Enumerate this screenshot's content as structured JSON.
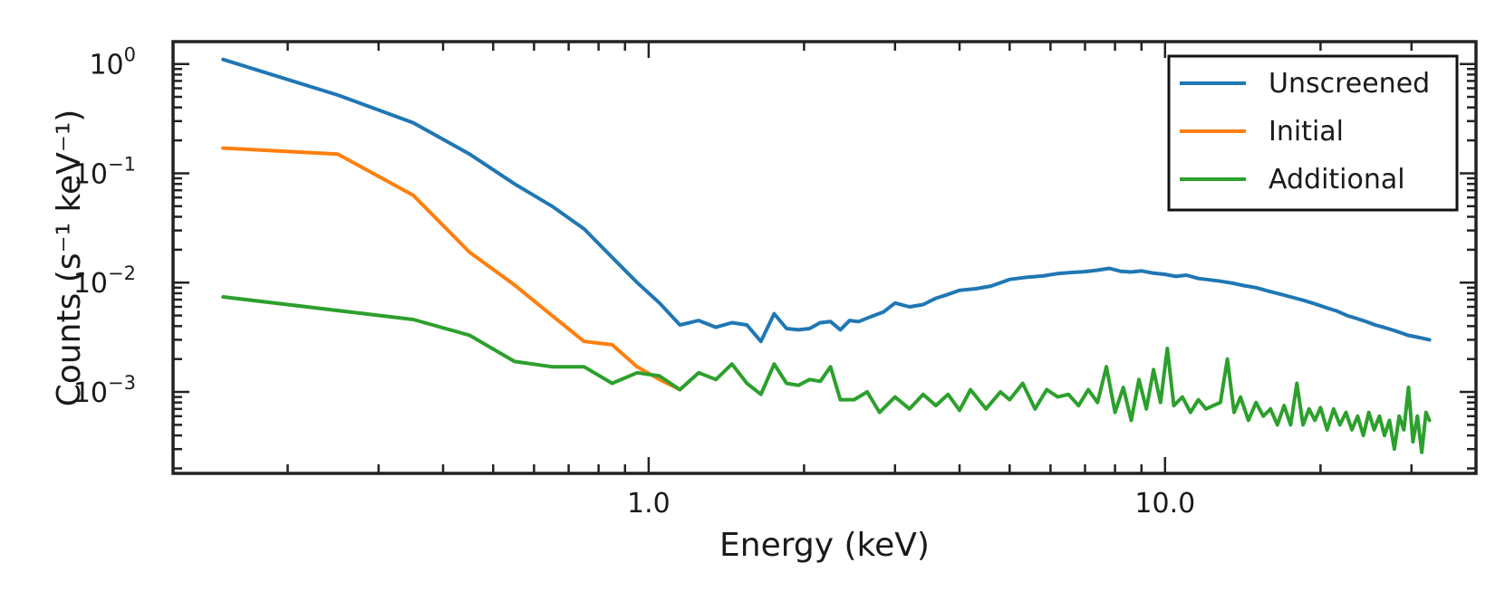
{
  "chart_data": {
    "type": "line",
    "xscale": "log",
    "yscale": "log",
    "xlabel": "Energy (keV)",
    "ylabel": "Counts (s⁻¹ keV⁻¹)",
    "xlim": [
      0.12,
      40
    ],
    "ylim": [
      0.00018,
      1.6
    ],
    "xticks": [
      {
        "value": 1.0,
        "label": "1.0"
      },
      {
        "value": 10.0,
        "label": "10.0"
      }
    ],
    "yticks": [
      {
        "value": 1,
        "base": "10",
        "exp": "0"
      },
      {
        "value": 0.1,
        "base": "10",
        "exp": "−1"
      },
      {
        "value": 0.01,
        "base": "10",
        "exp": "−2"
      },
      {
        "value": 0.001,
        "base": "10",
        "exp": "−3"
      }
    ],
    "legend_position": "top-right",
    "series": [
      {
        "name": "Unscreened",
        "color": "#1f77b4",
        "points": [
          [
            0.15,
            1.1
          ],
          [
            0.25,
            0.52
          ],
          [
            0.35,
            0.29
          ],
          [
            0.45,
            0.15
          ],
          [
            0.55,
            0.08
          ],
          [
            0.65,
            0.05
          ],
          [
            0.75,
            0.031
          ],
          [
            0.85,
            0.017
          ],
          [
            0.95,
            0.01
          ],
          [
            1.05,
            0.0065
          ],
          [
            1.15,
            0.0041
          ],
          [
            1.25,
            0.0045
          ],
          [
            1.35,
            0.0039
          ],
          [
            1.45,
            0.0043
          ],
          [
            1.55,
            0.0041
          ],
          [
            1.65,
            0.0029
          ],
          [
            1.75,
            0.0052
          ],
          [
            1.85,
            0.0038
          ],
          [
            1.95,
            0.0037
          ],
          [
            2.05,
            0.0038
          ],
          [
            2.15,
            0.0043
          ],
          [
            2.25,
            0.0044
          ],
          [
            2.35,
            0.0037
          ],
          [
            2.45,
            0.0045
          ],
          [
            2.55,
            0.0044
          ],
          [
            2.7,
            0.0049
          ],
          [
            2.85,
            0.0054
          ],
          [
            3.0,
            0.0065
          ],
          [
            3.2,
            0.006
          ],
          [
            3.4,
            0.0063
          ],
          [
            3.6,
            0.0072
          ],
          [
            3.8,
            0.0078
          ],
          [
            4.0,
            0.0085
          ],
          [
            4.3,
            0.0088
          ],
          [
            4.6,
            0.0093
          ],
          [
            5.0,
            0.0107
          ],
          [
            5.4,
            0.0112
          ],
          [
            5.8,
            0.0115
          ],
          [
            6.2,
            0.0121
          ],
          [
            6.6,
            0.0124
          ],
          [
            7.0,
            0.0126
          ],
          [
            7.4,
            0.013
          ],
          [
            7.8,
            0.0135
          ],
          [
            8.2,
            0.0127
          ],
          [
            8.6,
            0.0125
          ],
          [
            9.0,
            0.0128
          ],
          [
            9.5,
            0.0122
          ],
          [
            10.0,
            0.0119
          ],
          [
            10.5,
            0.0114
          ],
          [
            11.0,
            0.0117
          ],
          [
            11.6,
            0.0109
          ],
          [
            12.2,
            0.0106
          ],
          [
            12.8,
            0.0103
          ],
          [
            13.5,
            0.0099
          ],
          [
            14.2,
            0.0094
          ],
          [
            15.0,
            0.009
          ],
          [
            15.8,
            0.0084
          ],
          [
            16.6,
            0.0079
          ],
          [
            17.5,
            0.0074
          ],
          [
            18.5,
            0.0069
          ],
          [
            19.5,
            0.0064
          ],
          [
            20.5,
            0.0059
          ],
          [
            21.5,
            0.0055
          ],
          [
            22.5,
            0.005
          ],
          [
            23.5,
            0.0047
          ],
          [
            24.5,
            0.0044
          ],
          [
            25.5,
            0.0041
          ],
          [
            26.5,
            0.0039
          ],
          [
            27.5,
            0.0037
          ],
          [
            28.5,
            0.0035
          ],
          [
            29.5,
            0.0033
          ],
          [
            30.5,
            0.0032
          ],
          [
            31.5,
            0.0031
          ],
          [
            32.5,
            0.003
          ]
        ]
      },
      {
        "name": "Initial",
        "color": "#ff7f0e",
        "points": [
          [
            0.15,
            0.17
          ],
          [
            0.25,
            0.15
          ],
          [
            0.35,
            0.063
          ],
          [
            0.45,
            0.019
          ],
          [
            0.55,
            0.0095
          ],
          [
            0.65,
            0.005
          ],
          [
            0.75,
            0.0029
          ],
          [
            0.85,
            0.0027
          ],
          [
            0.95,
            0.0017
          ],
          [
            1.05,
            0.0013
          ],
          [
            1.15,
            0.00105
          ]
        ]
      },
      {
        "name": "Additional",
        "color": "#2ca02c",
        "points": [
          [
            0.15,
            0.0074
          ],
          [
            0.35,
            0.0046
          ],
          [
            0.45,
            0.0033
          ],
          [
            0.55,
            0.0019
          ],
          [
            0.65,
            0.0017
          ],
          [
            0.75,
            0.0017
          ],
          [
            0.85,
            0.0012
          ],
          [
            0.95,
            0.0015
          ],
          [
            1.05,
            0.0014
          ],
          [
            1.15,
            0.00105
          ],
          [
            1.25,
            0.0015
          ],
          [
            1.35,
            0.0013
          ],
          [
            1.45,
            0.0018
          ],
          [
            1.55,
            0.0012
          ],
          [
            1.65,
            0.00095
          ],
          [
            1.75,
            0.0018
          ],
          [
            1.85,
            0.0012
          ],
          [
            1.95,
            0.00115
          ],
          [
            2.05,
            0.0013
          ],
          [
            2.15,
            0.00125
          ],
          [
            2.25,
            0.0017
          ],
          [
            2.35,
            0.00085
          ],
          [
            2.5,
            0.00085
          ],
          [
            2.65,
            0.001
          ],
          [
            2.8,
            0.00065
          ],
          [
            3.0,
            0.0009
          ],
          [
            3.2,
            0.0007
          ],
          [
            3.4,
            0.00095
          ],
          [
            3.6,
            0.00075
          ],
          [
            3.8,
            0.00095
          ],
          [
            4.0,
            0.00068
          ],
          [
            4.2,
            0.00105
          ],
          [
            4.5,
            0.0007
          ],
          [
            4.8,
            0.001
          ],
          [
            5.0,
            0.00085
          ],
          [
            5.3,
            0.0012
          ],
          [
            5.6,
            0.0007
          ],
          [
            5.9,
            0.00105
          ],
          [
            6.2,
            0.0009
          ],
          [
            6.5,
            0.00095
          ],
          [
            6.8,
            0.00075
          ],
          [
            7.1,
            0.00105
          ],
          [
            7.4,
            0.0008
          ],
          [
            7.7,
            0.0017
          ],
          [
            8.0,
            0.00065
          ],
          [
            8.3,
            0.0011
          ],
          [
            8.6,
            0.00055
          ],
          [
            8.9,
            0.0013
          ],
          [
            9.2,
            0.0007
          ],
          [
            9.5,
            0.0016
          ],
          [
            9.8,
            0.0008
          ],
          [
            10.1,
            0.0025
          ],
          [
            10.4,
            0.00075
          ],
          [
            10.8,
            0.0009
          ],
          [
            11.2,
            0.00065
          ],
          [
            11.6,
            0.00085
          ],
          [
            12.0,
            0.0007
          ],
          [
            12.4,
            0.00075
          ],
          [
            12.8,
            0.0008
          ],
          [
            13.2,
            0.002
          ],
          [
            13.6,
            0.00065
          ],
          [
            14.0,
            0.0009
          ],
          [
            14.5,
            0.00055
          ],
          [
            15.0,
            0.0008
          ],
          [
            15.5,
            0.0006
          ],
          [
            16.0,
            0.0007
          ],
          [
            16.5,
            0.0005
          ],
          [
            17.0,
            0.00075
          ],
          [
            17.5,
            0.0005
          ],
          [
            18.0,
            0.0012
          ],
          [
            18.5,
            0.0005
          ],
          [
            19.0,
            0.0007
          ],
          [
            19.5,
            0.00055
          ],
          [
            20.0,
            0.00072
          ],
          [
            20.6,
            0.00045
          ],
          [
            21.2,
            0.0007
          ],
          [
            21.8,
            0.0005
          ],
          [
            22.4,
            0.00065
          ],
          [
            23.0,
            0.00045
          ],
          [
            23.6,
            0.0006
          ],
          [
            24.2,
            0.0004
          ],
          [
            24.8,
            0.00065
          ],
          [
            25.4,
            0.00045
          ],
          [
            26.0,
            0.0006
          ],
          [
            26.6,
            0.0004
          ],
          [
            27.2,
            0.00055
          ],
          [
            27.8,
            0.0003
          ],
          [
            28.4,
            0.0006
          ],
          [
            29.0,
            0.00045
          ],
          [
            29.6,
            0.0011
          ],
          [
            30.2,
            0.00035
          ],
          [
            30.8,
            0.0006
          ],
          [
            31.4,
            0.00028
          ],
          [
            32.0,
            0.00065
          ],
          [
            32.5,
            0.00055
          ]
        ]
      }
    ]
  }
}
